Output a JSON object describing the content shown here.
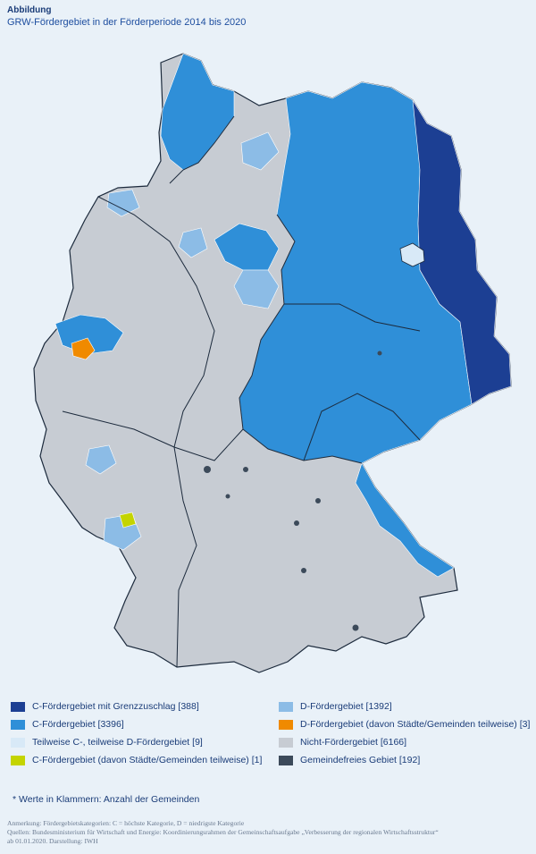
{
  "header": {
    "kicker": "Abbildung",
    "title": "GRW-Fördergebiet in der Förderperiode 2014 bis 2020"
  },
  "colors": {
    "c_grenz": "#1c3f93",
    "c_foerder": "#2f8fd8",
    "teilweise_cd": "#d8e9f7",
    "c_teilweise": "#c4d400",
    "d_foerder": "#8cbce6",
    "d_teilweise": "#f08a00",
    "nicht": "#c7ccd3",
    "gemeindefrei": "#3c4a5a",
    "border": "#ffffff",
    "state_border": "#1c2a3c"
  },
  "legend": {
    "items": [
      {
        "label": "C-Fördergebiet mit Grenzzuschlag [388]",
        "color": "#1c3f93"
      },
      {
        "label": "C-Fördergebiet [3396]",
        "color": "#2f8fd8"
      },
      {
        "label": "Teilweise C-, teilweise D-Fördergebiet [9]",
        "color": "#d8e9f7"
      },
      {
        "label": "C-Fördergebiet (davon Städte/Gemeinden teilweise) [1]",
        "color": "#c4d400"
      },
      {
        "label": "D-Fördergebiet [1392]",
        "color": "#8cbce6"
      },
      {
        "label": "D-Fördergebiet (davon Städte/Gemeinden teilweise) [3]",
        "color": "#f08a00"
      },
      {
        "label": "Nicht-Fördergebiet [6166]",
        "color": "#c7ccd3"
      },
      {
        "label": "Gemeindefreies Gebiet [192]",
        "color": "#3c4a5a"
      }
    ],
    "footnote": "* Werte in Klammern: Anzahl der Gemeinden"
  },
  "notes": {
    "anmerkung": "Anmerkung: Fördergebietskategorien: C = höchste Kategorie, D = niedrigste Kategorie",
    "quellen_1": "Quellen: Bundesministerium für Wirtschaft und Energie: Koordinierungsrahmen der Gemeinschaftsaufgabe „Verbesserung der regionalen Wirtschaftsstruktur“",
    "quellen_2": "ab 01.01.2020. Darstellung: IWH"
  }
}
